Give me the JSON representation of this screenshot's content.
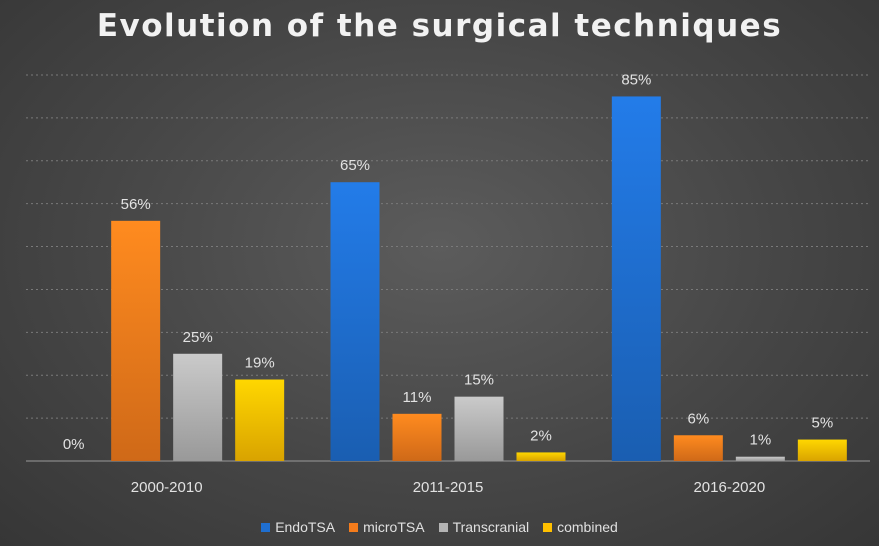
{
  "chart_data": {
    "type": "bar",
    "title": "Evolution of the surgical techniques",
    "categories": [
      "2000-2010",
      "2011-2015",
      "2016-2020"
    ],
    "series": [
      {
        "name": "EndoTSA",
        "values": [
          0,
          65,
          85
        ],
        "labels": [
          "0%",
          "65%",
          "85%"
        ],
        "color": "#1f6fd0"
      },
      {
        "name": "microTSA",
        "values": [
          56,
          11,
          6
        ],
        "labels": [
          "56%",
          "11%",
          "6%"
        ],
        "color": "#f47c1c"
      },
      {
        "name": "Transcranial",
        "values": [
          25,
          15,
          1
        ],
        "labels": [
          "25%",
          "15%",
          "1%"
        ],
        "color": "#b4b4b4"
      },
      {
        "name": "combined",
        "values": [
          19,
          2,
          5
        ],
        "labels": [
          "19%",
          "2%",
          "5%"
        ],
        "color": "#ffc000"
      }
    ],
    "ylim": [
      0,
      90
    ],
    "grid": true,
    "legend_position": "bottom"
  }
}
